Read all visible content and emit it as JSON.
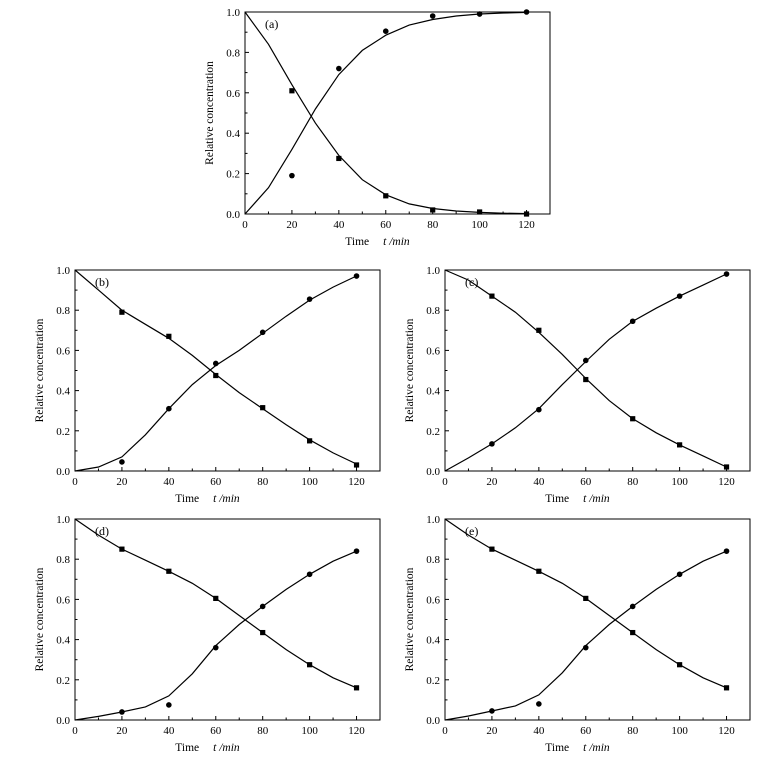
{
  "chart_data": [
    {
      "type": "scatter",
      "panel_label": "(a)",
      "xlabel": "Time",
      "xunit": "t /min",
      "ylabel": "Relative concentration",
      "xlim": [
        0,
        130
      ],
      "ylim": [
        0,
        1.0
      ],
      "xticks": [
        0,
        20,
        40,
        60,
        80,
        100,
        120
      ],
      "yticks": [
        0,
        0.2,
        0.4,
        0.6,
        0.8,
        1.0
      ],
      "series": [
        {
          "marker": "square",
          "points": [
            [
              20,
              0.61
            ],
            [
              40,
              0.275
            ],
            [
              60,
              0.09
            ],
            [
              80,
              0.02
            ],
            [
              100,
              0.01
            ],
            [
              120,
              0.0
            ]
          ],
          "curve": [
            [
              0,
              1.0
            ],
            [
              10,
              0.84
            ],
            [
              20,
              0.64
            ],
            [
              30,
              0.45
            ],
            [
              40,
              0.29
            ],
            [
              50,
              0.17
            ],
            [
              60,
              0.095
            ],
            [
              70,
              0.05
            ],
            [
              80,
              0.027
            ],
            [
              90,
              0.015
            ],
            [
              100,
              0.008
            ],
            [
              110,
              0.004
            ],
            [
              120,
              0.002
            ]
          ]
        },
        {
          "marker": "circle",
          "points": [
            [
              20,
              0.19
            ],
            [
              40,
              0.72
            ],
            [
              60,
              0.905
            ],
            [
              80,
              0.98
            ],
            [
              100,
              0.99
            ],
            [
              120,
              1.0
            ]
          ],
          "curve": [
            [
              0,
              0.0
            ],
            [
              10,
              0.13
            ],
            [
              20,
              0.32
            ],
            [
              30,
              0.52
            ],
            [
              40,
              0.69
            ],
            [
              50,
              0.81
            ],
            [
              60,
              0.885
            ],
            [
              70,
              0.935
            ],
            [
              80,
              0.963
            ],
            [
              90,
              0.98
            ],
            [
              100,
              0.99
            ],
            [
              110,
              0.995
            ],
            [
              120,
              0.998
            ]
          ]
        }
      ]
    },
    {
      "type": "scatter",
      "panel_label": "(b)",
      "xlabel": "Time",
      "xunit": "t /min",
      "ylabel": "Relative concentration",
      "xlim": [
        0,
        130
      ],
      "ylim": [
        0,
        1.0
      ],
      "xticks": [
        0,
        20,
        40,
        60,
        80,
        100,
        120
      ],
      "yticks": [
        0,
        0.2,
        0.4,
        0.6,
        0.8,
        1.0
      ],
      "series": [
        {
          "marker": "square",
          "points": [
            [
              20,
              0.79
            ],
            [
              40,
              0.67
            ],
            [
              60,
              0.475
            ],
            [
              80,
              0.315
            ],
            [
              100,
              0.15
            ],
            [
              120,
              0.03
            ]
          ],
          "curve": [
            [
              0,
              1.0
            ],
            [
              10,
              0.9
            ],
            [
              20,
              0.8
            ],
            [
              30,
              0.73
            ],
            [
              40,
              0.66
            ],
            [
              50,
              0.575
            ],
            [
              60,
              0.48
            ],
            [
              70,
              0.39
            ],
            [
              80,
              0.31
            ],
            [
              90,
              0.23
            ],
            [
              100,
              0.155
            ],
            [
              110,
              0.09
            ],
            [
              120,
              0.035
            ]
          ]
        },
        {
          "marker": "circle",
          "points": [
            [
              20,
              0.045
            ],
            [
              40,
              0.31
            ],
            [
              60,
              0.535
            ],
            [
              80,
              0.69
            ],
            [
              100,
              0.855
            ],
            [
              120,
              0.97
            ]
          ],
          "curve": [
            [
              0,
              0.0
            ],
            [
              10,
              0.02
            ],
            [
              20,
              0.07
            ],
            [
              30,
              0.18
            ],
            [
              40,
              0.31
            ],
            [
              50,
              0.43
            ],
            [
              60,
              0.525
            ],
            [
              70,
              0.6
            ],
            [
              80,
              0.685
            ],
            [
              90,
              0.77
            ],
            [
              100,
              0.85
            ],
            [
              110,
              0.915
            ],
            [
              120,
              0.97
            ]
          ]
        }
      ]
    },
    {
      "type": "scatter",
      "panel_label": "(c)",
      "xlabel": "Time",
      "xunit": "t /min",
      "ylabel": "Relative concentration",
      "xlim": [
        0,
        130
      ],
      "ylim": [
        0,
        1.0
      ],
      "xticks": [
        0,
        20,
        40,
        60,
        80,
        100,
        120
      ],
      "yticks": [
        0,
        0.2,
        0.4,
        0.6,
        0.8,
        1.0
      ],
      "series": [
        {
          "marker": "square",
          "points": [
            [
              20,
              0.87
            ],
            [
              40,
              0.7
            ],
            [
              60,
              0.455
            ],
            [
              80,
              0.26
            ],
            [
              100,
              0.13
            ],
            [
              120,
              0.02
            ]
          ],
          "curve": [
            [
              0,
              1.0
            ],
            [
              10,
              0.95
            ],
            [
              20,
              0.87
            ],
            [
              30,
              0.79
            ],
            [
              40,
              0.69
            ],
            [
              50,
              0.58
            ],
            [
              60,
              0.46
            ],
            [
              70,
              0.35
            ],
            [
              80,
              0.26
            ],
            [
              90,
              0.19
            ],
            [
              100,
              0.13
            ],
            [
              110,
              0.075
            ],
            [
              120,
              0.02
            ]
          ]
        },
        {
          "marker": "circle",
          "points": [
            [
              20,
              0.135
            ],
            [
              40,
              0.305
            ],
            [
              60,
              0.55
            ],
            [
              80,
              0.745
            ],
            [
              100,
              0.87
            ],
            [
              120,
              0.98
            ]
          ],
          "curve": [
            [
              0,
              0.0
            ],
            [
              10,
              0.065
            ],
            [
              20,
              0.135
            ],
            [
              30,
              0.215
            ],
            [
              40,
              0.31
            ],
            [
              50,
              0.43
            ],
            [
              60,
              0.545
            ],
            [
              70,
              0.655
            ],
            [
              80,
              0.745
            ],
            [
              90,
              0.81
            ],
            [
              100,
              0.87
            ],
            [
              110,
              0.925
            ],
            [
              120,
              0.98
            ]
          ]
        }
      ]
    },
    {
      "type": "scatter",
      "panel_label": "(d)",
      "xlabel": "Time",
      "xunit": "t /min",
      "ylabel": "Relative concentration",
      "xlim": [
        0,
        130
      ],
      "ylim": [
        0,
        1.0
      ],
      "xticks": [
        0,
        20,
        40,
        60,
        80,
        100,
        120
      ],
      "yticks": [
        0,
        0.2,
        0.4,
        0.6,
        0.8,
        1.0
      ],
      "series": [
        {
          "marker": "square",
          "points": [
            [
              20,
              0.85
            ],
            [
              40,
              0.74
            ],
            [
              60,
              0.605
            ],
            [
              80,
              0.435
            ],
            [
              100,
              0.275
            ],
            [
              120,
              0.16
            ]
          ],
          "curve": [
            [
              0,
              1.0
            ],
            [
              10,
              0.92
            ],
            [
              20,
              0.85
            ],
            [
              30,
              0.795
            ],
            [
              40,
              0.74
            ],
            [
              50,
              0.68
            ],
            [
              60,
              0.605
            ],
            [
              70,
              0.52
            ],
            [
              80,
              0.435
            ],
            [
              90,
              0.35
            ],
            [
              100,
              0.275
            ],
            [
              110,
              0.21
            ],
            [
              120,
              0.16
            ]
          ]
        },
        {
          "marker": "circle",
          "points": [
            [
              20,
              0.04
            ],
            [
              40,
              0.075
            ],
            [
              60,
              0.36
            ],
            [
              80,
              0.565
            ],
            [
              100,
              0.725
            ],
            [
              120,
              0.84
            ]
          ],
          "curve": [
            [
              0,
              0.0
            ],
            [
              10,
              0.018
            ],
            [
              20,
              0.04
            ],
            [
              30,
              0.065
            ],
            [
              40,
              0.12
            ],
            [
              50,
              0.23
            ],
            [
              60,
              0.37
            ],
            [
              70,
              0.475
            ],
            [
              80,
              0.565
            ],
            [
              90,
              0.65
            ],
            [
              100,
              0.725
            ],
            [
              110,
              0.79
            ],
            [
              120,
              0.84
            ]
          ]
        }
      ]
    },
    {
      "type": "scatter",
      "panel_label": "(e)",
      "xlabel": "Time",
      "xunit": "t /min",
      "ylabel": "Relative concentration",
      "xlim": [
        0,
        130
      ],
      "ylim": [
        0,
        1.0
      ],
      "xticks": [
        0,
        20,
        40,
        60,
        80,
        100,
        120
      ],
      "yticks": [
        0,
        0.2,
        0.4,
        0.6,
        0.8,
        1.0
      ],
      "series": [
        {
          "marker": "square",
          "points": [
            [
              20,
              0.85
            ],
            [
              40,
              0.74
            ],
            [
              60,
              0.605
            ],
            [
              80,
              0.435
            ],
            [
              100,
              0.275
            ],
            [
              120,
              0.16
            ]
          ],
          "curve": [
            [
              0,
              1.0
            ],
            [
              10,
              0.92
            ],
            [
              20,
              0.85
            ],
            [
              30,
              0.795
            ],
            [
              40,
              0.74
            ],
            [
              50,
              0.68
            ],
            [
              60,
              0.605
            ],
            [
              70,
              0.52
            ],
            [
              80,
              0.435
            ],
            [
              90,
              0.35
            ],
            [
              100,
              0.275
            ],
            [
              110,
              0.21
            ],
            [
              120,
              0.16
            ]
          ]
        },
        {
          "marker": "circle",
          "points": [
            [
              20,
              0.045
            ],
            [
              40,
              0.08
            ],
            [
              60,
              0.36
            ],
            [
              80,
              0.565
            ],
            [
              100,
              0.725
            ],
            [
              120,
              0.84
            ]
          ],
          "curve": [
            [
              0,
              0.0
            ],
            [
              10,
              0.02
            ],
            [
              20,
              0.045
            ],
            [
              30,
              0.07
            ],
            [
              40,
              0.125
            ],
            [
              50,
              0.235
            ],
            [
              60,
              0.37
            ],
            [
              70,
              0.475
            ],
            [
              80,
              0.565
            ],
            [
              90,
              0.65
            ],
            [
              100,
              0.725
            ],
            [
              110,
              0.79
            ],
            [
              120,
              0.84
            ]
          ]
        }
      ]
    }
  ]
}
